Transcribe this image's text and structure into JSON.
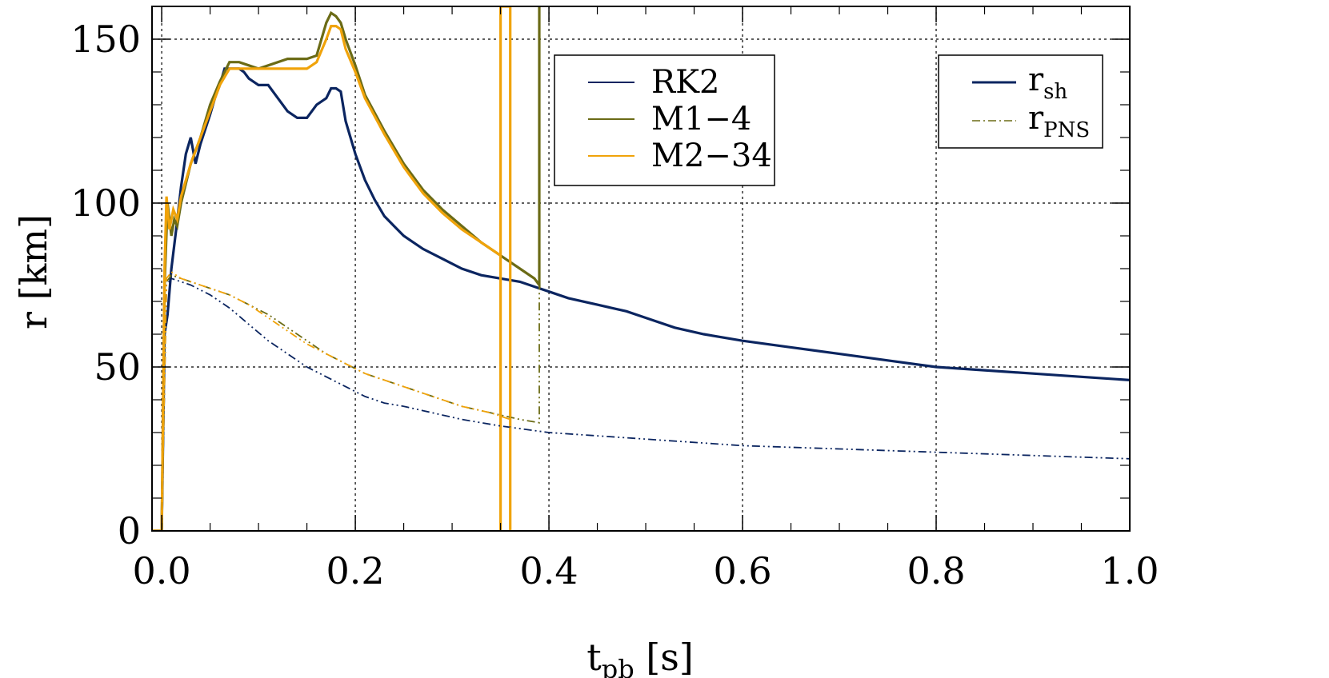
{
  "chart_data": {
    "type": "line",
    "title": "",
    "xlabel_main": "t",
    "xlabel_sub": "pb",
    "xlabel_unit": " [s]",
    "ylabel": "r [km]",
    "xlim": [
      -0.01,
      1.0
    ],
    "ylim": [
      0,
      160
    ],
    "xticks": [
      0.0,
      0.2,
      0.4,
      0.6,
      0.8,
      1.0
    ],
    "xtick_labels": [
      "0.0",
      "0.2",
      "0.4",
      "0.6",
      "0.8",
      "1.0"
    ],
    "yticks": [
      0,
      50,
      100,
      150
    ],
    "ytick_labels": [
      "0",
      "50",
      "100",
      "150"
    ],
    "grid": true,
    "legend_models": {
      "placement": "top-center",
      "entries": [
        {
          "label": "RK2",
          "color": "#0b2560"
        },
        {
          "label": "M1−4",
          "color": "#6b6b16"
        },
        {
          "label": "M2−34",
          "color": "#f0a30a"
        }
      ]
    },
    "legend_quantities": {
      "placement": "top-right",
      "entries": [
        {
          "label": "r",
          "sub": "sh",
          "style": "solid"
        },
        {
          "label": "r",
          "sub": "PNS",
          "style": "dash-dot"
        }
      ]
    },
    "series": [
      {
        "model": "RK2",
        "quantity": "r_sh",
        "color": "#0b2560",
        "x": [
          -0.01,
          0.0,
          0.003,
          0.006,
          0.01,
          0.015,
          0.02,
          0.025,
          0.03,
          0.035,
          0.04,
          0.05,
          0.055,
          0.06,
          0.065,
          0.07,
          0.075,
          0.08,
          0.085,
          0.09,
          0.1,
          0.11,
          0.12,
          0.13,
          0.14,
          0.15,
          0.16,
          0.17,
          0.175,
          0.18,
          0.185,
          0.19,
          0.2,
          0.21,
          0.22,
          0.23,
          0.24,
          0.25,
          0.27,
          0.29,
          0.31,
          0.33,
          0.35,
          0.37,
          0.39,
          0.4,
          0.42,
          0.45,
          0.48,
          0.5,
          0.53,
          0.56,
          0.6,
          0.65,
          0.7,
          0.75,
          0.8,
          0.85,
          0.9,
          0.95,
          1.0
        ],
        "y": [
          0,
          0,
          60,
          66,
          80,
          92,
          105,
          115,
          120,
          112,
          118,
          127,
          132,
          136,
          141,
          141,
          141,
          141,
          140,
          138,
          136,
          136,
          132,
          128,
          126,
          126,
          130,
          132,
          135,
          135,
          134,
          125,
          115,
          107,
          101,
          96,
          93,
          90,
          86,
          83,
          80,
          78,
          77,
          76,
          74,
          73,
          71,
          69,
          67,
          65,
          62,
          60,
          58,
          56,
          54,
          52,
          50,
          49,
          48,
          47,
          46
        ]
      },
      {
        "model": "M1−4",
        "quantity": "r_sh",
        "color": "#6b6b16",
        "x": [
          -0.01,
          0.0,
          0.003,
          0.006,
          0.01,
          0.013,
          0.016,
          0.02,
          0.03,
          0.04,
          0.05,
          0.06,
          0.07,
          0.08,
          0.09,
          0.1,
          0.11,
          0.13,
          0.15,
          0.16,
          0.17,
          0.175,
          0.18,
          0.185,
          0.19,
          0.2,
          0.21,
          0.23,
          0.25,
          0.27,
          0.29,
          0.31,
          0.33,
          0.35,
          0.37,
          0.385,
          0.39,
          0.39
        ],
        "y": [
          0,
          0,
          75,
          100,
          90,
          95,
          93,
          100,
          112,
          120,
          130,
          137,
          143,
          143,
          142,
          141,
          142,
          144,
          144,
          145,
          155,
          158,
          157,
          155,
          150,
          142,
          133,
          122,
          112,
          104,
          98,
          93,
          88,
          84,
          80,
          77,
          75,
          160
        ]
      },
      {
        "model": "M2−34",
        "quantity": "r_sh",
        "color": "#f0a30a",
        "x": [
          -0.01,
          0.0,
          0.003,
          0.005,
          0.008,
          0.012,
          0.016,
          0.02,
          0.03,
          0.04,
          0.05,
          0.06,
          0.07,
          0.08,
          0.09,
          0.1,
          0.11,
          0.13,
          0.15,
          0.16,
          0.17,
          0.175,
          0.18,
          0.185,
          0.19,
          0.2,
          0.21,
          0.23,
          0.25,
          0.27,
          0.29,
          0.31,
          0.33,
          0.35,
          0.35,
          0.35,
          0.36,
          0.36
        ],
        "y": [
          0,
          0,
          80,
          102,
          92,
          98,
          95,
          102,
          112,
          120,
          128,
          136,
          141,
          141,
          141,
          141,
          141,
          141,
          141,
          143,
          150,
          154,
          154,
          153,
          147,
          140,
          132,
          121,
          111,
          103,
          97,
          92,
          88,
          84,
          0,
          160,
          160,
          0
        ]
      },
      {
        "model": "RK2",
        "quantity": "r_PNS",
        "color": "#0b2560",
        "x": [
          0.0,
          0.005,
          0.01,
          0.02,
          0.03,
          0.05,
          0.07,
          0.09,
          0.11,
          0.13,
          0.15,
          0.17,
          0.19,
          0.21,
          0.23,
          0.25,
          0.28,
          0.31,
          0.35,
          0.4,
          0.45,
          0.5,
          0.6,
          0.7,
          0.8,
          0.9,
          1.0
        ],
        "y": [
          0,
          75,
          77,
          76,
          75,
          72,
          68,
          63,
          58,
          54,
          50,
          47,
          44,
          41,
          39,
          38,
          36,
          34,
          32,
          30,
          29,
          28,
          26,
          25,
          24,
          23,
          22
        ]
      },
      {
        "model": "M1−4",
        "quantity": "r_PNS",
        "color": "#6b6b16",
        "x": [
          0.0,
          0.005,
          0.01,
          0.02,
          0.03,
          0.05,
          0.07,
          0.09,
          0.11,
          0.13,
          0.15,
          0.17,
          0.19,
          0.21,
          0.23,
          0.25,
          0.28,
          0.31,
          0.34,
          0.37,
          0.39,
          0.39
        ],
        "y": [
          0,
          76,
          78,
          77,
          76,
          74,
          72,
          69,
          66,
          62,
          58,
          54,
          51,
          48,
          46,
          44,
          41,
          38,
          36,
          34,
          33,
          80
        ]
      },
      {
        "model": "M2−34",
        "quantity": "r_PNS",
        "color": "#f0a30a",
        "x": [
          0.0,
          0.005,
          0.01,
          0.02,
          0.03,
          0.05,
          0.07,
          0.09,
          0.11,
          0.13,
          0.15,
          0.17,
          0.19,
          0.21,
          0.23,
          0.25,
          0.28,
          0.31,
          0.34,
          0.35,
          0.36,
          0.36,
          0.36
        ],
        "y": [
          0,
          77,
          79,
          77,
          76,
          74,
          72,
          69,
          65,
          61,
          57,
          54,
          51,
          48,
          46,
          44,
          41,
          38,
          36,
          35,
          34,
          160,
          20
        ]
      }
    ]
  }
}
